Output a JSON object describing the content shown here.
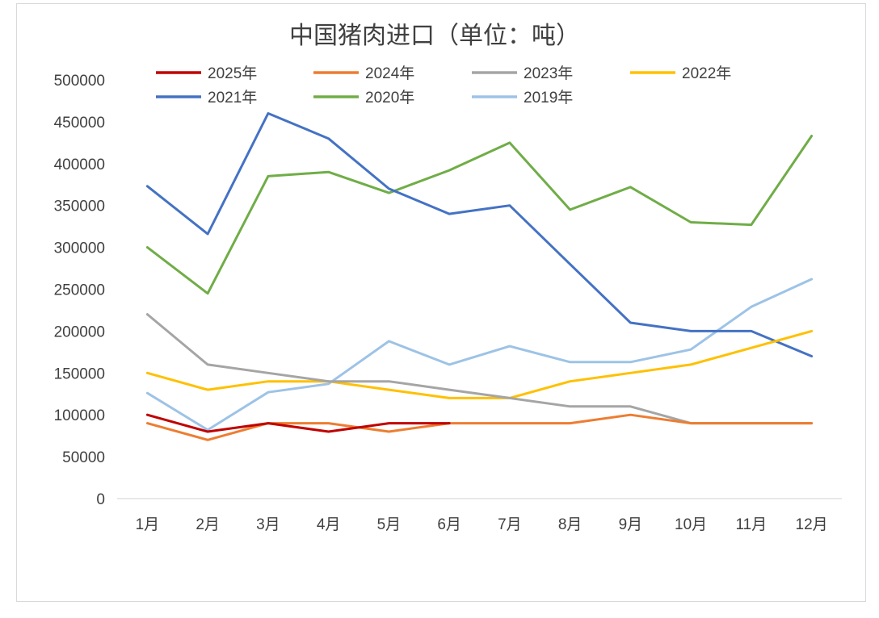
{
  "chart_data": {
    "type": "line",
    "title": "中国猪肉进口（单位：吨）",
    "xlabel": "",
    "ylabel": "",
    "ylim": [
      0,
      500000
    ],
    "yticks": [
      "0",
      "50000",
      "100000",
      "150000",
      "200000",
      "250000",
      "300000",
      "350000",
      "400000",
      "450000",
      "500000"
    ],
    "categories": [
      "1月",
      "2月",
      "3月",
      "4月",
      "5月",
      "6月",
      "7月",
      "8月",
      "9月",
      "10月",
      "11月",
      "12月"
    ],
    "grid": false,
    "legend_position": "top",
    "series": [
      {
        "name": "2025年",
        "color": "#c00000",
        "values": [
          100000,
          80000,
          90000,
          80000,
          90000,
          90000,
          null,
          null,
          null,
          null,
          null,
          null
        ]
      },
      {
        "name": "2024年",
        "color": "#ed7d31",
        "values": [
          90000,
          70000,
          90000,
          90000,
          80000,
          90000,
          90000,
          90000,
          100000,
          90000,
          90000,
          90000
        ]
      },
      {
        "name": "2023年",
        "color": "#a5a5a5",
        "values": [
          220000,
          160000,
          150000,
          140000,
          140000,
          130000,
          120000,
          110000,
          110000,
          90000,
          90000,
          90000
        ]
      },
      {
        "name": "2022年",
        "color": "#ffc000",
        "values": [
          150000,
          130000,
          140000,
          140000,
          130000,
          120000,
          120000,
          140000,
          150000,
          160000,
          180000,
          200000
        ]
      },
      {
        "name": "2021年",
        "color": "#4472c4",
        "values": [
          373000,
          316000,
          460000,
          430000,
          370000,
          340000,
          350000,
          280000,
          210000,
          200000,
          200000,
          170000
        ]
      },
      {
        "name": "2020年",
        "color": "#70ad47",
        "values": [
          300000,
          245000,
          385000,
          390000,
          365000,
          392000,
          425000,
          345000,
          372000,
          330000,
          327000,
          433000
        ]
      },
      {
        "name": "2019年",
        "color": "#9dc3e6",
        "values": [
          126000,
          82000,
          127000,
          137000,
          188000,
          160000,
          182000,
          163000,
          163000,
          178000,
          229000,
          262000
        ]
      }
    ]
  }
}
